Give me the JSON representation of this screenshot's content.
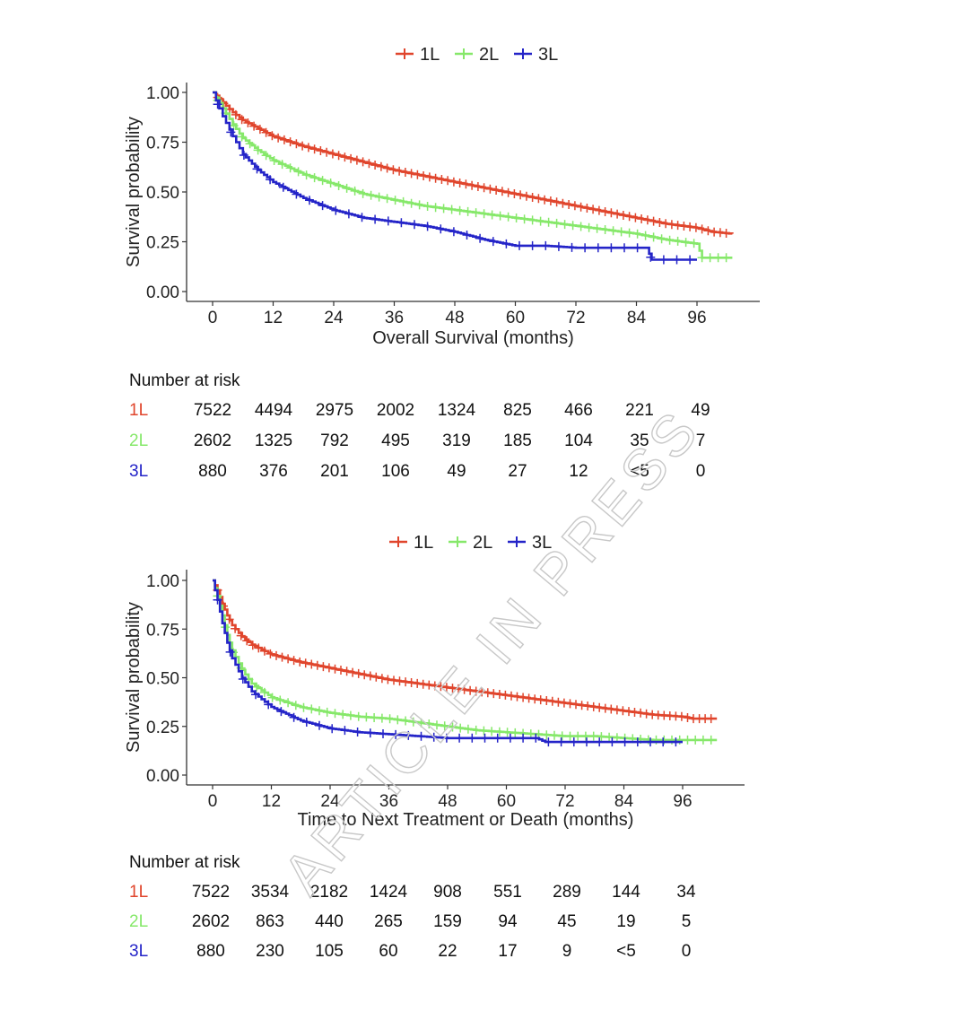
{
  "watermark": "ARTICLE IN PRESS",
  "colors": {
    "1L": "#e0452c",
    "2L": "#86e86a",
    "3L": "#2424c8",
    "axis": "#333333"
  },
  "chart_data": [
    {
      "type": "line",
      "subtype": "kaplan-meier",
      "title": "",
      "xlabel": "Overall Survival (months)",
      "ylabel": "Survival probability",
      "xlim": [
        -2,
        102
      ],
      "ylim": [
        0,
        1
      ],
      "xticks": [
        0,
        12,
        24,
        36,
        48,
        60,
        72,
        84,
        96
      ],
      "yticks": [
        0,
        0.25,
        0.5,
        0.75,
        1.0
      ],
      "ytick_labels": [
        "0.00",
        "0.25",
        "0.50",
        "0.75",
        "1.00"
      ],
      "legend": {
        "position": "top",
        "entries": [
          "1L",
          "2L",
          "3L"
        ]
      },
      "series": [
        {
          "name": "1L",
          "x": [
            0,
            2,
            4,
            6,
            9,
            12,
            18,
            24,
            30,
            36,
            42,
            48,
            54,
            60,
            66,
            72,
            78,
            84,
            90,
            96,
            99,
            103
          ],
          "y": [
            1.0,
            0.95,
            0.9,
            0.86,
            0.82,
            0.78,
            0.73,
            0.69,
            0.65,
            0.61,
            0.58,
            0.55,
            0.52,
            0.49,
            0.46,
            0.43,
            0.4,
            0.37,
            0.34,
            0.32,
            0.3,
            0.29
          ]
        },
        {
          "name": "2L",
          "x": [
            0,
            2,
            4,
            6,
            9,
            12,
            18,
            24,
            30,
            36,
            42,
            48,
            54,
            60,
            66,
            72,
            78,
            84,
            90,
            96,
            97,
            103
          ],
          "y": [
            1.0,
            0.92,
            0.84,
            0.77,
            0.71,
            0.66,
            0.59,
            0.54,
            0.49,
            0.46,
            0.43,
            0.41,
            0.39,
            0.37,
            0.35,
            0.33,
            0.31,
            0.29,
            0.26,
            0.24,
            0.17,
            0.17
          ]
        },
        {
          "name": "3L",
          "x": [
            0,
            2,
            4,
            6,
            9,
            12,
            18,
            24,
            30,
            36,
            42,
            48,
            54,
            60,
            66,
            72,
            78,
            84,
            86,
            87,
            96
          ],
          "y": [
            1.0,
            0.88,
            0.78,
            0.69,
            0.61,
            0.55,
            0.47,
            0.41,
            0.37,
            0.35,
            0.33,
            0.3,
            0.26,
            0.23,
            0.23,
            0.22,
            0.22,
            0.22,
            0.22,
            0.16,
            0.16
          ]
        }
      ],
      "risk_table": {
        "title": "Number at risk",
        "rows": [
          {
            "label": "1L",
            "values": [
              "7522",
              "4494",
              "2975",
              "2002",
              "1324",
              "825",
              "466",
              "221",
              "49"
            ]
          },
          {
            "label": "2L",
            "values": [
              "2602",
              "1325",
              "792",
              "495",
              "319",
              "185",
              "104",
              "35",
              "7"
            ]
          },
          {
            "label": "3L",
            "values": [
              "880",
              "376",
              "201",
              "106",
              "49",
              "27",
              "12",
              "<5",
              "0"
            ]
          }
        ]
      }
    },
    {
      "type": "line",
      "subtype": "kaplan-meier",
      "title": "",
      "xlabel": "Time to Next Treatment or Death (months)",
      "ylabel": "Survival probability",
      "xlim": [
        -2,
        107
      ],
      "ylim": [
        0,
        1
      ],
      "xticks": [
        0,
        12,
        24,
        36,
        48,
        60,
        72,
        84,
        96
      ],
      "yticks": [
        0,
        0.25,
        0.5,
        0.75,
        1.0
      ],
      "ytick_labels": [
        "0.00",
        "0.25",
        "0.50",
        "0.75",
        "1.00"
      ],
      "legend": {
        "position": "top",
        "entries": [
          "1L",
          "2L",
          "3L"
        ]
      },
      "series": [
        {
          "name": "1L",
          "x": [
            0,
            1,
            2,
            3,
            4,
            6,
            8,
            12,
            18,
            24,
            30,
            36,
            42,
            48,
            54,
            60,
            66,
            72,
            78,
            84,
            90,
            96,
            98,
            103
          ],
          "y": [
            1.0,
            0.95,
            0.88,
            0.82,
            0.77,
            0.71,
            0.67,
            0.62,
            0.58,
            0.55,
            0.52,
            0.49,
            0.47,
            0.45,
            0.43,
            0.41,
            0.39,
            0.37,
            0.35,
            0.33,
            0.31,
            0.3,
            0.29,
            0.29
          ]
        },
        {
          "name": "2L",
          "x": [
            0,
            1,
            2,
            3,
            4,
            6,
            8,
            12,
            18,
            24,
            30,
            36,
            42,
            48,
            54,
            60,
            66,
            72,
            78,
            84,
            90,
            96,
            103
          ],
          "y": [
            1.0,
            0.92,
            0.82,
            0.72,
            0.64,
            0.54,
            0.47,
            0.4,
            0.35,
            0.32,
            0.3,
            0.29,
            0.27,
            0.25,
            0.23,
            0.22,
            0.21,
            0.2,
            0.2,
            0.19,
            0.18,
            0.18,
            0.18
          ]
        },
        {
          "name": "3L",
          "x": [
            0,
            1,
            2,
            3,
            4,
            6,
            8,
            12,
            18,
            24,
            30,
            36,
            42,
            48,
            54,
            60,
            66,
            68,
            72,
            84,
            96
          ],
          "y": [
            1.0,
            0.9,
            0.78,
            0.68,
            0.6,
            0.5,
            0.43,
            0.35,
            0.28,
            0.24,
            0.22,
            0.21,
            0.2,
            0.19,
            0.19,
            0.19,
            0.19,
            0.17,
            0.17,
            0.17,
            0.17
          ]
        }
      ],
      "risk_table": {
        "title": "Number at risk",
        "rows": [
          {
            "label": "1L",
            "values": [
              "7522",
              "3534",
              "2182",
              "1424",
              "908",
              "551",
              "289",
              "144",
              "34"
            ]
          },
          {
            "label": "2L",
            "values": [
              "2602",
              "863",
              "440",
              "265",
              "159",
              "94",
              "45",
              "19",
              "5"
            ]
          },
          {
            "label": "3L",
            "values": [
              "880",
              "230",
              "105",
              "60",
              "22",
              "17",
              "9",
              "<5",
              "0"
            ]
          }
        ]
      }
    }
  ]
}
